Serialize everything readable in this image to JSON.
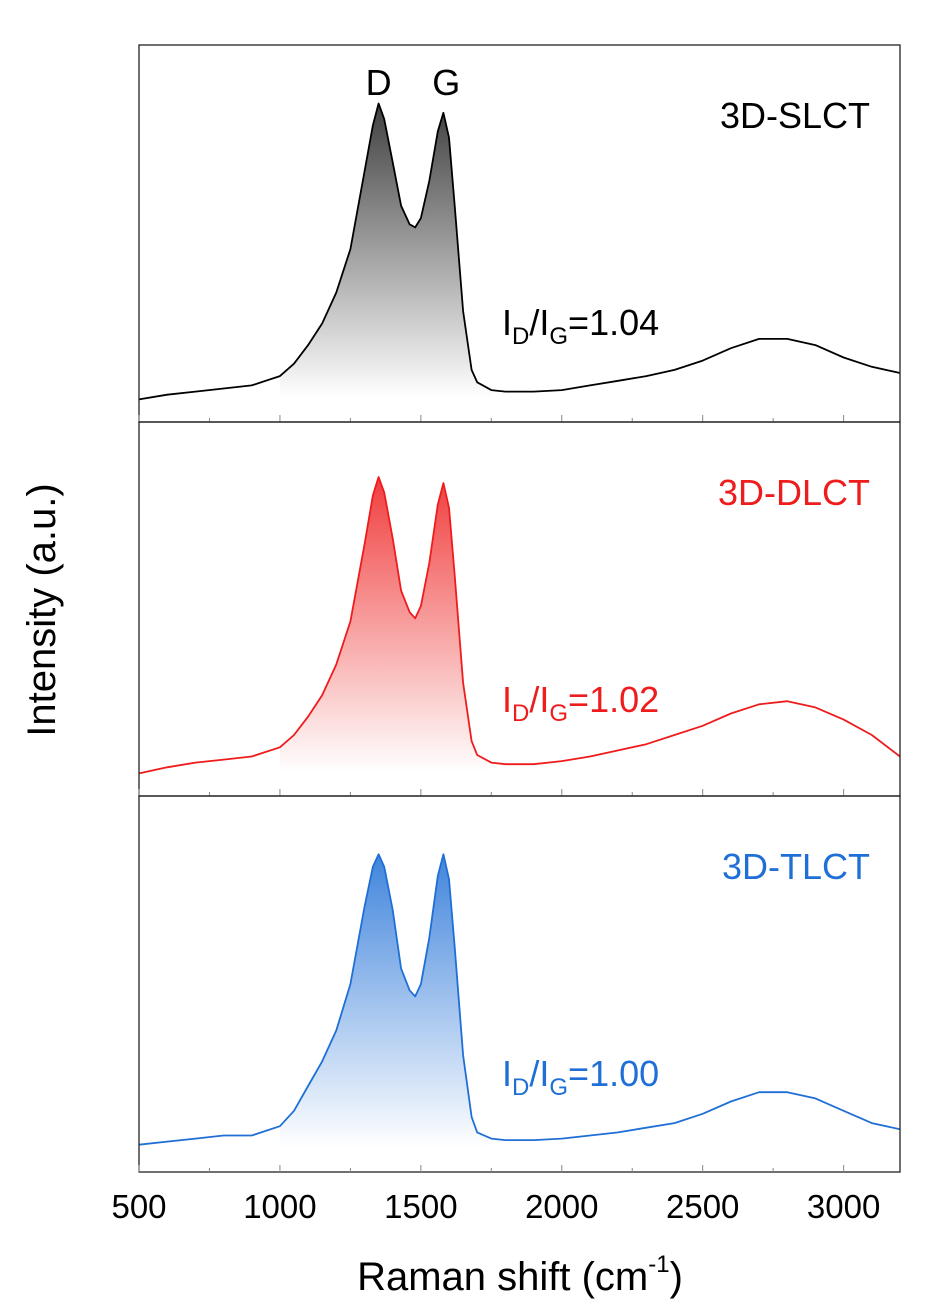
{
  "chart_data": {
    "type": "line",
    "xlabel": "Raman shift (cm",
    "xlabel_sup": "-1",
    "xlabel_close": ")",
    "ylabel": "Intensity (a.u.)",
    "xlim": [
      500,
      3200
    ],
    "ylim": [
      0,
      1.12
    ],
    "xticks": [
      500,
      1000,
      1500,
      2000,
      2500,
      3000
    ],
    "xtick_labels": [
      "500",
      "1000",
      "1500",
      "2000",
      "2500",
      "3000"
    ],
    "peak_labels": [
      {
        "text": "D",
        "x": 1350
      },
      {
        "text": "G",
        "x": 1590
      }
    ],
    "panels": [
      {
        "name": "3D-SLCT",
        "color": "#000000",
        "ratio_prefix": "I",
        "ratio_sub1": "D",
        "ratio_mid": "/I",
        "ratio_sub2": "G",
        "ratio_value": "=1.04",
        "x": [
          500,
          600,
          700,
          800,
          900,
          1000,
          1050,
          1100,
          1150,
          1200,
          1250,
          1300,
          1330,
          1350,
          1370,
          1400,
          1430,
          1460,
          1480,
          1500,
          1530,
          1560,
          1580,
          1600,
          1620,
          1650,
          1680,
          1700,
          1750,
          1800,
          1900,
          2000,
          2100,
          2200,
          2300,
          2400,
          2500,
          2600,
          2700,
          2800,
          2900,
          3000,
          3100,
          3200
        ],
        "y": [
          0.015,
          0.03,
          0.04,
          0.05,
          0.06,
          0.09,
          0.13,
          0.19,
          0.26,
          0.36,
          0.5,
          0.75,
          0.9,
          0.97,
          0.92,
          0.78,
          0.64,
          0.58,
          0.57,
          0.6,
          0.72,
          0.88,
          0.94,
          0.86,
          0.64,
          0.3,
          0.11,
          0.07,
          0.045,
          0.04,
          0.04,
          0.045,
          0.06,
          0.075,
          0.09,
          0.11,
          0.14,
          0.18,
          0.21,
          0.21,
          0.19,
          0.15,
          0.12,
          0.1
        ]
      },
      {
        "name": "3D-DLCT",
        "color": "#ee1c1c",
        "ratio_prefix": "I",
        "ratio_sub1": "D",
        "ratio_mid": "/I",
        "ratio_sub2": "G",
        "ratio_value": "=1.02",
        "x": [
          500,
          600,
          700,
          800,
          900,
          1000,
          1050,
          1100,
          1150,
          1200,
          1250,
          1300,
          1330,
          1350,
          1370,
          1400,
          1430,
          1460,
          1480,
          1500,
          1530,
          1560,
          1580,
          1600,
          1620,
          1650,
          1680,
          1700,
          1750,
          1800,
          1900,
          2000,
          2100,
          2200,
          2300,
          2400,
          2500,
          2600,
          2700,
          2800,
          2900,
          3000,
          3100,
          3200
        ],
        "y": [
          0.015,
          0.035,
          0.05,
          0.06,
          0.07,
          0.1,
          0.14,
          0.2,
          0.27,
          0.37,
          0.51,
          0.76,
          0.92,
          0.98,
          0.93,
          0.78,
          0.61,
          0.54,
          0.52,
          0.56,
          0.7,
          0.89,
          0.96,
          0.88,
          0.66,
          0.31,
          0.12,
          0.075,
          0.05,
          0.045,
          0.045,
          0.055,
          0.07,
          0.09,
          0.11,
          0.14,
          0.17,
          0.21,
          0.24,
          0.25,
          0.23,
          0.19,
          0.14,
          0.07
        ]
      },
      {
        "name": "3D-TLCT",
        "color": "#1f6fd6",
        "ratio_prefix": "I",
        "ratio_sub1": "D",
        "ratio_mid": "/I",
        "ratio_sub2": "G",
        "ratio_value": "=1.00",
        "x": [
          500,
          600,
          700,
          800,
          900,
          1000,
          1050,
          1100,
          1150,
          1200,
          1250,
          1300,
          1330,
          1350,
          1370,
          1400,
          1430,
          1460,
          1480,
          1500,
          1530,
          1560,
          1580,
          1600,
          1620,
          1650,
          1680,
          1700,
          1750,
          1800,
          1900,
          2000,
          2100,
          2200,
          2300,
          2400,
          2500,
          2600,
          2700,
          2800,
          2900,
          3000,
          3100,
          3200
        ],
        "y": [
          0.03,
          0.04,
          0.05,
          0.06,
          0.06,
          0.09,
          0.14,
          0.22,
          0.3,
          0.4,
          0.55,
          0.8,
          0.93,
          0.97,
          0.93,
          0.79,
          0.6,
          0.53,
          0.51,
          0.55,
          0.7,
          0.9,
          0.97,
          0.89,
          0.67,
          0.32,
          0.12,
          0.07,
          0.05,
          0.045,
          0.045,
          0.05,
          0.06,
          0.07,
          0.085,
          0.1,
          0.13,
          0.17,
          0.2,
          0.2,
          0.18,
          0.14,
          0.1,
          0.08
        ]
      }
    ]
  }
}
